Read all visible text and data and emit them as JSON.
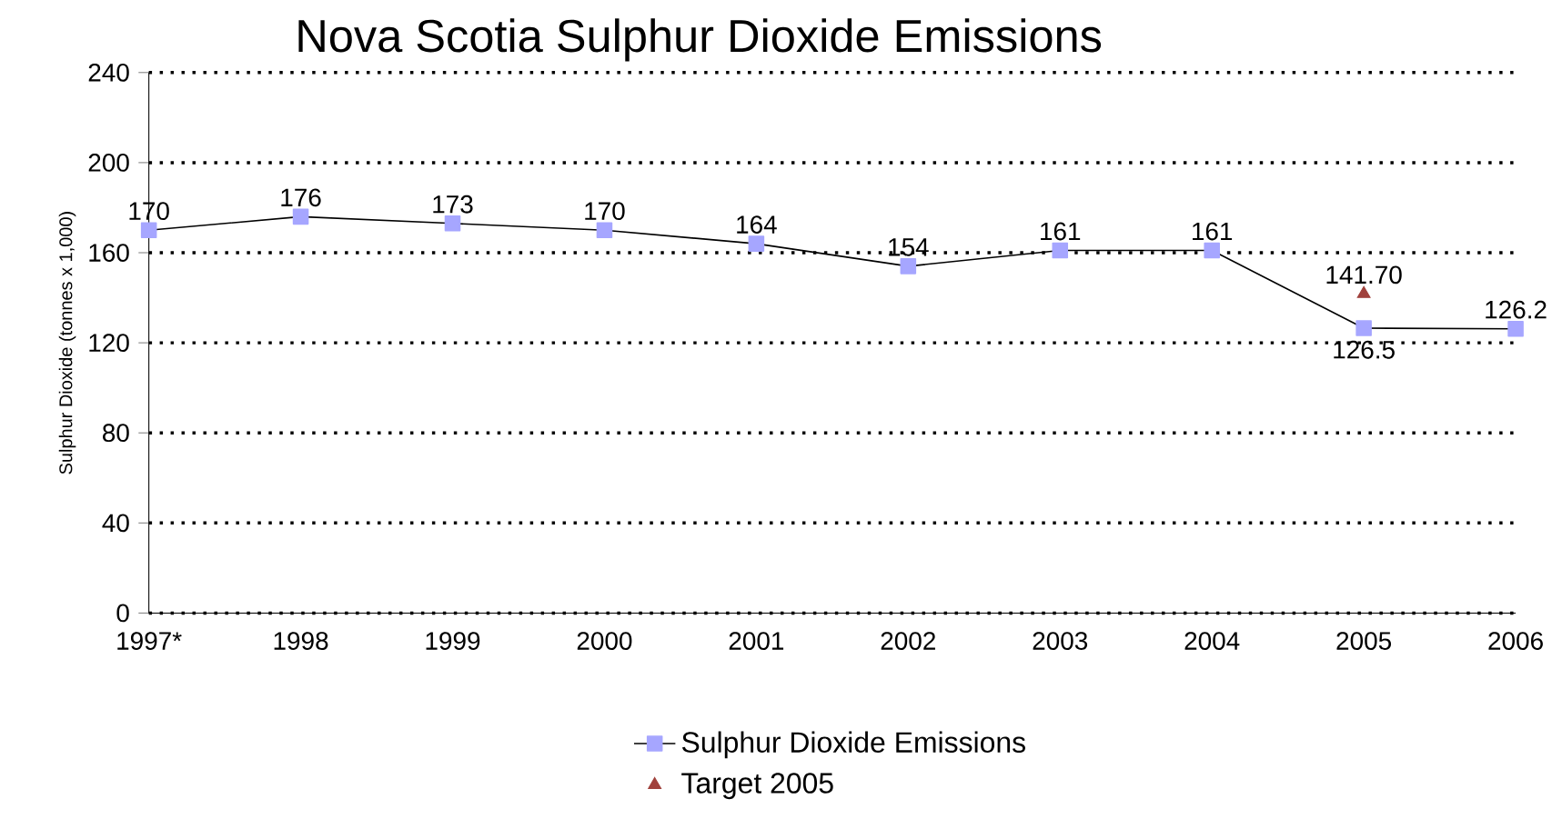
{
  "chart_data": {
    "type": "line",
    "title": "Nova Scotia Sulphur Dioxide Emissions",
    "ylabel": "Sulphur Dioxide (tonnes x 1,000)",
    "categories": [
      "1997*",
      "1998",
      "1999",
      "2000",
      "2001",
      "2002",
      "2003",
      "2004",
      "2005",
      "2006"
    ],
    "series": [
      {
        "name": "Sulphur Dioxide Emissions",
        "color": "#a6a6ff",
        "marker": "square",
        "values": [
          170,
          176,
          173,
          170,
          164,
          154,
          161,
          161,
          126.5,
          126.2
        ],
        "value_labels": [
          "170",
          "176",
          "173",
          "170",
          "164",
          "154",
          "161",
          "161",
          "126.5",
          "126.2"
        ]
      },
      {
        "name": "Target 2005",
        "type": "scatter",
        "color": "#a0413c",
        "marker": "triangle",
        "values": [
          null,
          null,
          null,
          null,
          null,
          null,
          null,
          null,
          141.7,
          null
        ],
        "value_labels": [
          null,
          null,
          null,
          null,
          null,
          null,
          null,
          null,
          "141.70",
          null
        ]
      }
    ],
    "ylim": [
      0,
      240
    ],
    "yticks": [
      0,
      40,
      80,
      120,
      160,
      200,
      240
    ],
    "grid": "y",
    "legend": "bottom"
  }
}
